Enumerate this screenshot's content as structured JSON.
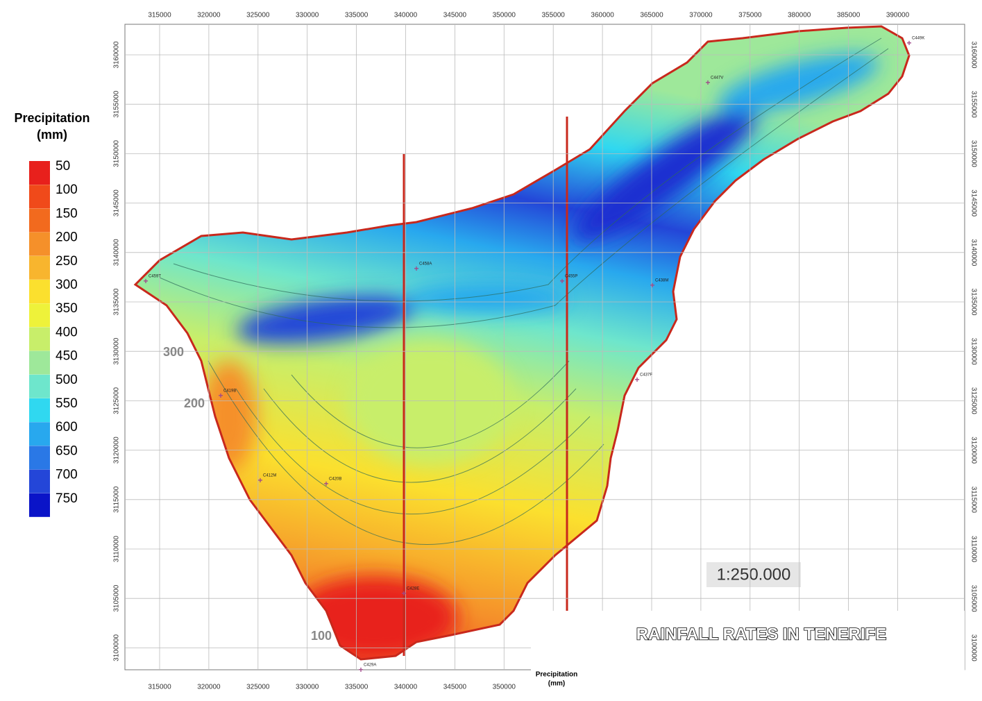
{
  "legend": {
    "title_lines": [
      "Precipitation",
      "(mm)"
    ],
    "items": [
      {
        "label": "50",
        "color": "#e8201c"
      },
      {
        "label": "100",
        "color": "#f04a1a"
      },
      {
        "label": "150",
        "color": "#f26a1e"
      },
      {
        "label": "200",
        "color": "#f5902a"
      },
      {
        "label": "250",
        "color": "#f8b52e"
      },
      {
        "label": "300",
        "color": "#fbe02e"
      },
      {
        "label": "350",
        "color": "#eef23a"
      },
      {
        "label": "400",
        "color": "#c8ee6a"
      },
      {
        "label": "450",
        "color": "#9ee89a"
      },
      {
        "label": "500",
        "color": "#6ee6cc"
      },
      {
        "label": "550",
        "color": "#30d8f0"
      },
      {
        "label": "600",
        "color": "#28a8ee"
      },
      {
        "label": "650",
        "color": "#2a78e6"
      },
      {
        "label": "700",
        "color": "#2446d8"
      },
      {
        "label": "750",
        "color": "#0a14c8"
      }
    ]
  },
  "x_ticks": [
    315000,
    320000,
    325000,
    330000,
    335000,
    340000,
    345000,
    350000,
    355000,
    360000,
    365000,
    370000,
    375000,
    380000,
    385000,
    390000
  ],
  "y_ticks": [
    3160000,
    3155000,
    3150000,
    3145000,
    3140000,
    3135000,
    3130000,
    3125000,
    3120000,
    3115000,
    3110000,
    3105000,
    3100000
  ],
  "contour_labels": [
    "300",
    "200",
    "100"
  ],
  "stations": [
    "C459T",
    "C458A",
    "C455P",
    "C447V",
    "C449K",
    "C419B",
    "C428E",
    "C429A",
    "C437F",
    "C420B",
    "C412M",
    "C438M"
  ],
  "scale": "1:250.000",
  "title": "RAINFALL RATES IN TENERIFE",
  "inset_lines": [
    "Precipitation",
    "(mm)"
  ]
}
